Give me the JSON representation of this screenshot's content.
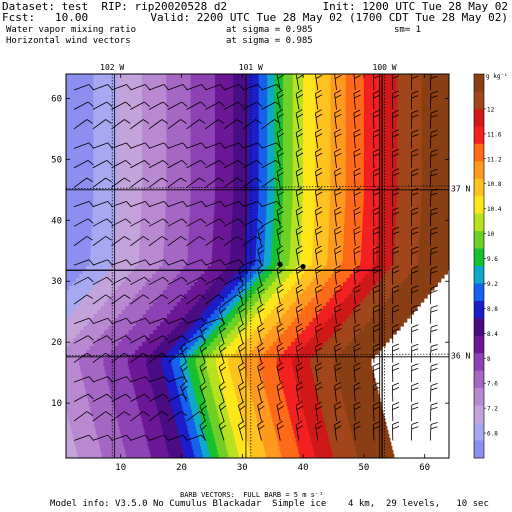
{
  "header": {
    "dataset": "Dataset: test  RIP: rip20020528 d2",
    "init": "Init: 1200 UTC Tue 28 May 02",
    "fcst": "Fcst:   10.00",
    "valid": "Valid: 2200 UTC Tue 28 May 02 (1700 CDT Tue 28 May 02)",
    "field1": "Water vapor mixing ratio",
    "field1_level": "at sigma = 0.985",
    "field1_sm": "sm= 1",
    "field2": "Horizontal wind vectors",
    "field2_level": "at sigma = 0.985"
  },
  "map": {
    "longitude_labels": [
      "102 W",
      "101 W",
      "100 W"
    ],
    "latitude_labels": [
      "37 N",
      "36 N"
    ],
    "x_ticks": [
      "10",
      "20",
      "30",
      "40",
      "50",
      "60"
    ],
    "y_ticks": [
      "10",
      "20",
      "30",
      "40",
      "50",
      "60"
    ],
    "x_range": [
      1,
      64
    ],
    "y_range": [
      1,
      64
    ],
    "gridline_lon_x": [
      8.6,
      31.4,
      53.4
    ],
    "gridline_lat_y": [
      17.8,
      45.2
    ],
    "gridline_lat_tilt": [
      0.25,
      0.45
    ],
    "state_border_y": 31.8,
    "state_border_x_start": 53.0,
    "county_line_x": [
      9.0,
      30.6,
      52.6
    ],
    "stations_xy": [
      [
        36.2,
        32.8
      ],
      [
        40.0,
        32.4
      ]
    ]
  },
  "colorbar": {
    "unit": "g kg⁻¹",
    "labels": [
      "12",
      "11.6",
      "11.2",
      "10.8",
      "10.4",
      "10",
      "9.6",
      "9.2",
      "8.8",
      "8.4",
      "8",
      "7.6",
      "7.2",
      "6.8"
    ],
    "colors": [
      "#8a3e14",
      "#a0461a",
      "#d01818",
      "#f22020",
      "#ff6a18",
      "#ff9a1e",
      "#ffc21e",
      "#ffe61a",
      "#b8e11e",
      "#6ed024",
      "#18c030",
      "#10a8c8",
      "#1462ec",
      "#1c1cc8",
      "#4a0c82",
      "#6c1896",
      "#8c42b4",
      "#a467c4",
      "#b889d0",
      "#c4a2da",
      "#a6a8f2",
      "#8c8ef0"
    ]
  },
  "wind": {
    "full_barb_ms": 5,
    "columns": 20,
    "rows": 19
  },
  "footer": {
    "barb_note": "BARB VECTORS:  FULL BARB = 5 m s⁻¹",
    "model_info": "Model info: V3.5.0 No Cumulus Blackadar  Simple ice    4 km,  29 levels,   10 sec"
  }
}
